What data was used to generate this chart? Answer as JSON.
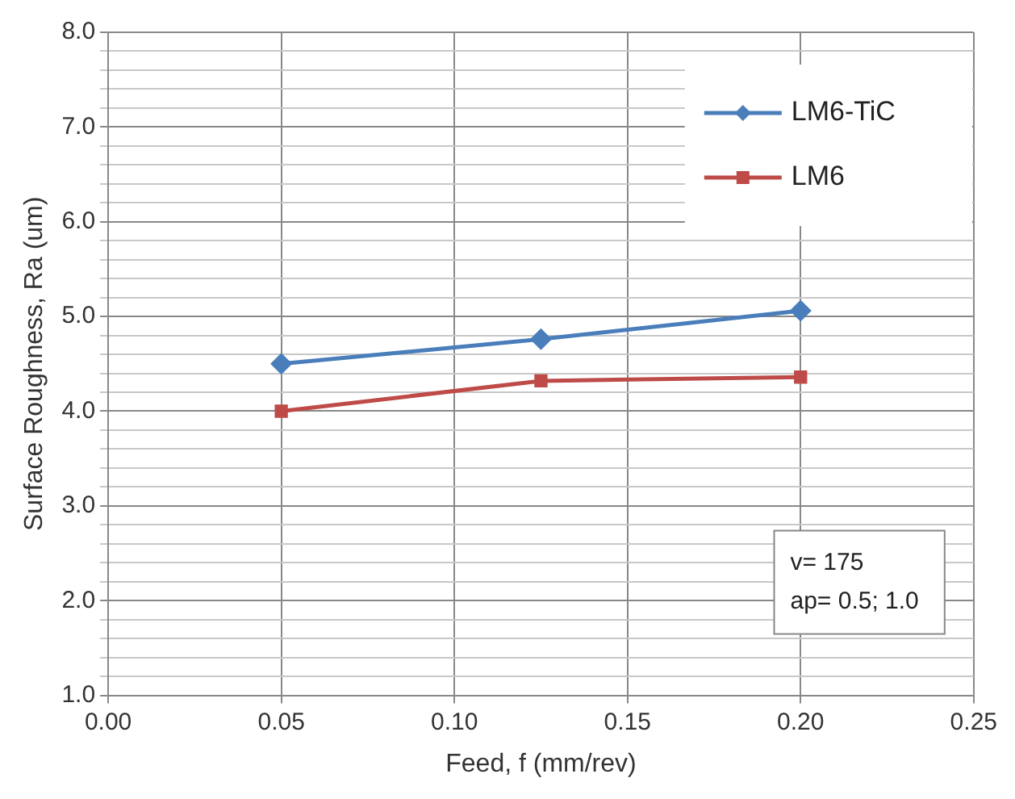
{
  "chart_data": {
    "type": "line",
    "xlabel": "Feed, f (mm/rev)",
    "ylabel": "Surface Roughness, Ra (um)",
    "x": [
      0.05,
      0.125,
      0.2
    ],
    "series": [
      {
        "name": "LM6-TiC",
        "color": "#4a7ebb",
        "marker": "diamond",
        "values": [
          4.5,
          4.76,
          5.06
        ]
      },
      {
        "name": "LM6",
        "color": "#be4b48",
        "marker": "square",
        "values": [
          4.0,
          4.32,
          4.36
        ]
      }
    ],
    "xlim": [
      0,
      0.25
    ],
    "xticks": [
      {
        "value": 0,
        "label": "0.00"
      },
      {
        "value": 0.05,
        "label": "0.05"
      },
      {
        "value": 0.1,
        "label": "0.10"
      },
      {
        "value": 0.15,
        "label": "0.15"
      },
      {
        "value": 0.2,
        "label": "0.20"
      },
      {
        "value": 0.25,
        "label": "0.25"
      }
    ],
    "ylim": [
      1,
      8
    ],
    "yticks": [
      {
        "value": 1,
        "label": "1.0"
      },
      {
        "value": 1.2,
        "label": null
      },
      {
        "value": 1.4,
        "label": null
      },
      {
        "value": 1.6,
        "label": null
      },
      {
        "value": 1.8,
        "label": null
      },
      {
        "value": 2,
        "label": "2.0"
      },
      {
        "value": 2.2,
        "label": null
      },
      {
        "value": 2.4,
        "label": null
      },
      {
        "value": 2.6,
        "label": null
      },
      {
        "value": 2.8,
        "label": null
      },
      {
        "value": 3,
        "label": "3.0"
      },
      {
        "value": 3.2,
        "label": null
      },
      {
        "value": 3.4,
        "label": null
      },
      {
        "value": 3.6,
        "label": null
      },
      {
        "value": 3.8,
        "label": null
      },
      {
        "value": 4,
        "label": "4.0"
      },
      {
        "value": 4.2,
        "label": null
      },
      {
        "value": 4.4,
        "label": null
      },
      {
        "value": 4.6,
        "label": null
      },
      {
        "value": 4.8,
        "label": null
      },
      {
        "value": 5,
        "label": "5.0"
      },
      {
        "value": 5.2,
        "label": null
      },
      {
        "value": 5.4,
        "label": null
      },
      {
        "value": 5.6,
        "label": null
      },
      {
        "value": 5.8,
        "label": null
      },
      {
        "value": 6,
        "label": "6.0"
      },
      {
        "value": 6.2,
        "label": null
      },
      {
        "value": 6.4,
        "label": null
      },
      {
        "value": 6.6,
        "label": null
      },
      {
        "value": 6.8,
        "label": null
      },
      {
        "value": 7,
        "label": "7.0"
      },
      {
        "value": 7.2,
        "label": null
      },
      {
        "value": 7.4,
        "label": null
      },
      {
        "value": 7.6,
        "label": null
      },
      {
        "value": 7.8,
        "label": null
      },
      {
        "value": 8,
        "label": "8.0"
      }
    ],
    "grid": true,
    "legend": "top right",
    "line_style": "solid",
    "annotations": [
      "v= 175",
      "ap= 0.5; 1.0"
    ]
  }
}
